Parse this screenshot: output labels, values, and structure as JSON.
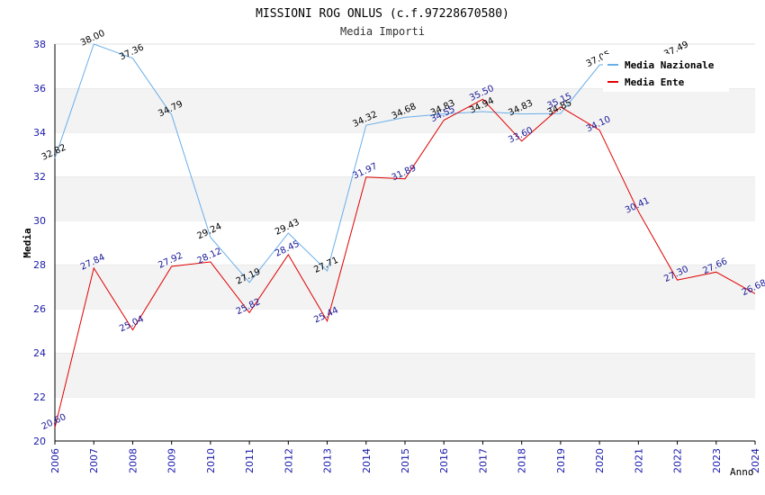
{
  "chart_data": {
    "type": "line",
    "title": "MISSIONI ROG ONLUS (c.f.97228670580)",
    "subtitle": "Media Importi",
    "ylabel": "Media",
    "xlabel": "Anno",
    "ylim": [
      20,
      38
    ],
    "yticks": [
      20,
      22,
      24,
      26,
      28,
      30,
      32,
      34,
      36,
      38
    ],
    "x": [
      "2006",
      "2007",
      "2008",
      "2009",
      "2010",
      "2011",
      "2012",
      "2013",
      "2014",
      "2015",
      "2016",
      "2017",
      "2018",
      "2019",
      "2020",
      "2021",
      "2022",
      "2023",
      "2024"
    ],
    "grid": "horizontal bands",
    "legend_position": "top-right",
    "series": [
      {
        "name": "Media Nazionale",
        "color": "#6aaee8",
        "values": [
          32.82,
          38.0,
          37.36,
          34.79,
          29.24,
          27.19,
          29.43,
          27.71,
          34.32,
          34.68,
          34.83,
          34.94,
          34.83,
          34.85,
          37.05,
          null,
          37.49,
          null,
          null
        ],
        "labels": [
          "32.82",
          "38.00",
          "37.36",
          "34.79",
          "29.24",
          "27.19",
          "29.43",
          "27.71",
          "34.32",
          "34.68",
          "34.83",
          "34.94",
          "34.83",
          "34.85",
          "37.05",
          null,
          "37.49",
          null,
          null
        ]
      },
      {
        "name": "Media Ente",
        "color": "#e00000",
        "values": [
          20.6,
          27.84,
          25.04,
          27.92,
          28.12,
          25.82,
          28.45,
          25.44,
          31.97,
          31.89,
          34.55,
          35.5,
          33.6,
          35.15,
          34.1,
          30.41,
          27.3,
          27.66,
          26.68
        ],
        "labels": [
          "20.60",
          "27.84",
          "25.04",
          "27.92",
          "28.12",
          "25.82",
          "28.45",
          "25.44",
          "31.97",
          "31.89",
          "34.55",
          "35.50",
          "33.60",
          "35.15",
          "34.10",
          "30.41",
          "27.30",
          "27.66",
          "26.68"
        ]
      }
    ]
  }
}
